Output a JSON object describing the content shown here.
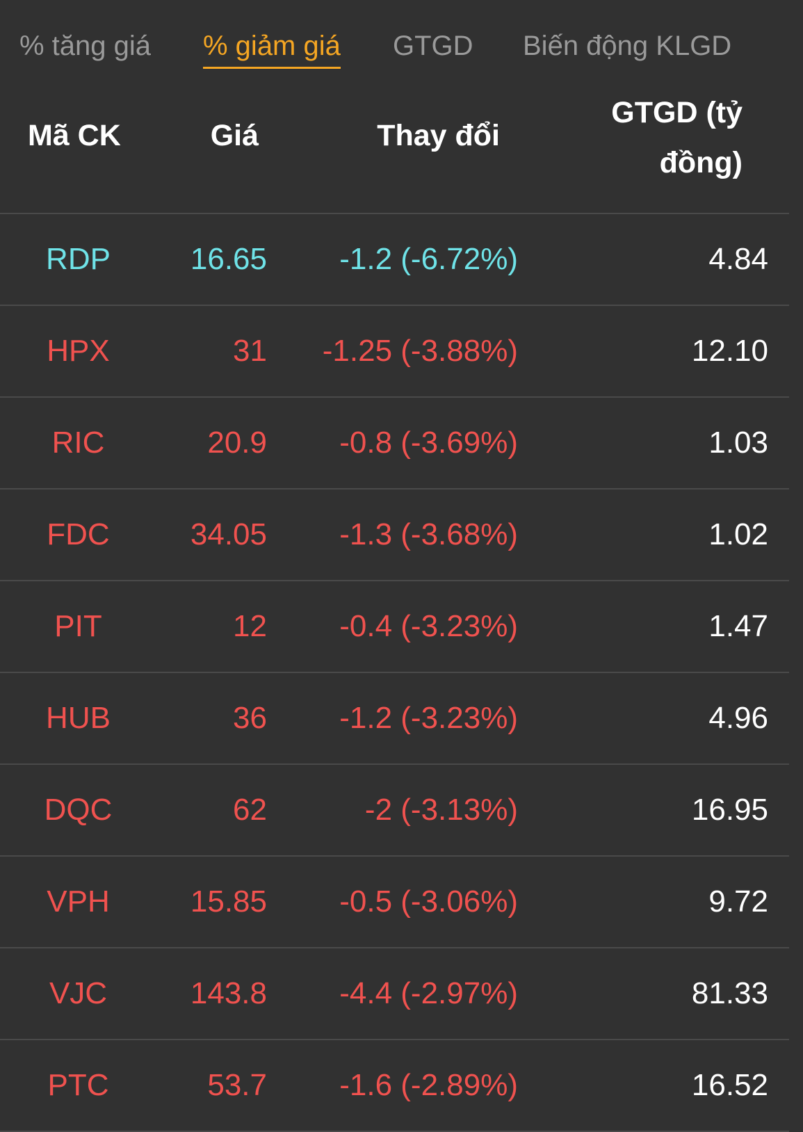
{
  "colors": {
    "background": "#313131",
    "tab_inactive": "#9a9a9a",
    "tab_active": "#f5a623",
    "floor": "#6fe3e8",
    "down": "#f0524f",
    "text": "#ffffff"
  },
  "tabs": [
    {
      "label": "% tăng giá",
      "active": false
    },
    {
      "label": "% giảm giá",
      "active": true
    },
    {
      "label": "GTGD",
      "active": false
    },
    {
      "label": "Biến động KLGD",
      "active": false
    }
  ],
  "table": {
    "headers": {
      "code": "Mã CK",
      "price": "Giá",
      "change": "Thay đổi",
      "value_line1": "GTGD (tỷ",
      "value_line2": "đồng)"
    },
    "rows": [
      {
        "code": "RDP",
        "price": "16.65",
        "change": "-1.2 (-6.72%)",
        "value": "4.84",
        "status": "floor"
      },
      {
        "code": "HPX",
        "price": "31",
        "change": "-1.25 (-3.88%)",
        "value": "12.10",
        "status": "down"
      },
      {
        "code": "RIC",
        "price": "20.9",
        "change": "-0.8 (-3.69%)",
        "value": "1.03",
        "status": "down"
      },
      {
        "code": "FDC",
        "price": "34.05",
        "change": "-1.3 (-3.68%)",
        "value": "1.02",
        "status": "down"
      },
      {
        "code": "PIT",
        "price": "12",
        "change": "-0.4 (-3.23%)",
        "value": "1.47",
        "status": "down"
      },
      {
        "code": "HUB",
        "price": "36",
        "change": "-1.2 (-3.23%)",
        "value": "4.96",
        "status": "down"
      },
      {
        "code": "DQC",
        "price": "62",
        "change": "-2 (-3.13%)",
        "value": "16.95",
        "status": "down"
      },
      {
        "code": "VPH",
        "price": "15.85",
        "change": "-0.5 (-3.06%)",
        "value": "9.72",
        "status": "down"
      },
      {
        "code": "VJC",
        "price": "143.8",
        "change": "-4.4 (-2.97%)",
        "value": "81.33",
        "status": "down"
      },
      {
        "code": "PTC",
        "price": "53.7",
        "change": "-1.6 (-2.89%)",
        "value": "16.52",
        "status": "down"
      }
    ]
  }
}
